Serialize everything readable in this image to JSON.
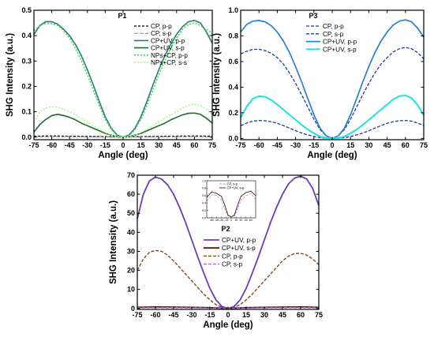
{
  "chart_data": [
    {
      "id": "p1",
      "type": "line",
      "title": "P1",
      "xlabel": "Angle (deg)",
      "ylabel": "SHG Intensity (a.u.)",
      "xlim": [
        -75,
        75
      ],
      "ylim": [
        -0.01,
        0.5
      ],
      "xticks": [
        -75,
        -60,
        -45,
        -30,
        -15,
        0,
        15,
        30,
        45,
        60,
        75
      ],
      "yticks": [
        0.0,
        0.1,
        0.2,
        0.3,
        0.4,
        0.5
      ],
      "ytick_labels": [
        "0.0",
        "0.1",
        "0.2",
        "0.3",
        "0.4",
        "0.5"
      ],
      "legend_position": "top-right",
      "series": [
        {
          "name": "CP, p-p",
          "color": "#000000",
          "dash": "3,2",
          "width": 1.2,
          "x": [
            -75,
            -60,
            -45,
            -30,
            -15,
            -5,
            0,
            5,
            15,
            30,
            45,
            60,
            75
          ],
          "y": [
            0.004,
            0.005,
            0.004,
            0.003,
            0.002,
            0.001,
            0.0,
            0.001,
            0.002,
            0.003,
            0.004,
            0.005,
            0.004
          ]
        },
        {
          "name": "CP, s-p",
          "color": "#7a7a7a",
          "dash": "5,2",
          "width": 1.0,
          "x": [
            -75,
            -60,
            -45,
            -30,
            -15,
            -5,
            0,
            5,
            15,
            30,
            45,
            60,
            75
          ],
          "y": [
            0.001,
            0.002,
            0.002,
            0.001,
            0.001,
            0.0,
            0.0,
            0.0,
            0.001,
            0.001,
            0.002,
            0.002,
            0.001
          ]
        },
        {
          "name": "CP+UV, p-p",
          "color": "#2b7a78",
          "dash": "",
          "width": 1.6,
          "x": [
            -75,
            -70,
            -65,
            -60,
            -55,
            -50,
            -45,
            -40,
            -35,
            -30,
            -25,
            -20,
            -15,
            -10,
            -5,
            0,
            5,
            10,
            15,
            20,
            25,
            30,
            35,
            40,
            45,
            50,
            55,
            60,
            65,
            70,
            75
          ],
          "y": [
            0.405,
            0.44,
            0.455,
            0.455,
            0.445,
            0.425,
            0.4,
            0.365,
            0.32,
            0.265,
            0.205,
            0.14,
            0.08,
            0.035,
            0.008,
            0.0,
            0.008,
            0.035,
            0.08,
            0.14,
            0.205,
            0.265,
            0.32,
            0.365,
            0.405,
            0.435,
            0.455,
            0.46,
            0.45,
            0.415,
            0.37
          ]
        },
        {
          "name": "CP+UV, s-p",
          "color": "#1e6b2e",
          "dash": "",
          "width": 1.6,
          "x": [
            -75,
            -70,
            -65,
            -60,
            -55,
            -50,
            -45,
            -40,
            -35,
            -30,
            -25,
            -20,
            -15,
            -10,
            -5,
            0,
            5,
            10,
            15,
            20,
            25,
            30,
            35,
            40,
            45,
            50,
            55,
            60,
            65,
            70,
            75
          ],
          "y": [
            0.02,
            0.05,
            0.07,
            0.085,
            0.09,
            0.085,
            0.078,
            0.068,
            0.055,
            0.045,
            0.035,
            0.025,
            0.015,
            0.008,
            0.002,
            0.0,
            0.002,
            0.008,
            0.015,
            0.025,
            0.035,
            0.045,
            0.055,
            0.068,
            0.078,
            0.088,
            0.094,
            0.095,
            0.09,
            0.075,
            0.055
          ]
        },
        {
          "name": "NPs+CP, p-p",
          "color": "#3ddc4a",
          "dash": "2,2",
          "width": 1.6,
          "x": [
            -75,
            -70,
            -65,
            -60,
            -55,
            -50,
            -45,
            -40,
            -35,
            -30,
            -25,
            -20,
            -15,
            -10,
            -5,
            0,
            5,
            10,
            15,
            20,
            25,
            30,
            35,
            40,
            45,
            50,
            55,
            60,
            65,
            70,
            75
          ],
          "y": [
            0.42,
            0.44,
            0.448,
            0.448,
            0.44,
            0.42,
            0.39,
            0.35,
            0.3,
            0.245,
            0.185,
            0.125,
            0.07,
            0.03,
            0.006,
            0.0,
            0.006,
            0.03,
            0.07,
            0.125,
            0.185,
            0.245,
            0.3,
            0.35,
            0.39,
            0.425,
            0.445,
            0.45,
            0.44,
            0.425,
            0.41
          ]
        },
        {
          "name": "NPs+CP, s-s",
          "color": "#a7f08a",
          "dash": "2,2",
          "width": 1.4,
          "x": [
            -75,
            -70,
            -65,
            -60,
            -55,
            -50,
            -45,
            -40,
            -35,
            -30,
            -25,
            -20,
            -15,
            -10,
            -5,
            0,
            5,
            10,
            15,
            20,
            25,
            30,
            35,
            40,
            45,
            50,
            55,
            60,
            65,
            70,
            75
          ],
          "y": [
            0.06,
            0.1,
            0.115,
            0.12,
            0.118,
            0.11,
            0.1,
            0.088,
            0.075,
            0.06,
            0.045,
            0.03,
            0.018,
            0.008,
            0.002,
            0.0,
            0.002,
            0.008,
            0.018,
            0.03,
            0.045,
            0.06,
            0.075,
            0.088,
            0.1,
            0.115,
            0.125,
            0.13,
            0.125,
            0.11,
            0.09
          ]
        }
      ]
    },
    {
      "id": "p3",
      "type": "line",
      "title": "P3",
      "xlabel": "Angle (deg)",
      "ylabel": "SHG Intensity (a.u.)",
      "xlim": [
        -75,
        75
      ],
      "ylim": [
        -0.01,
        1.0
      ],
      "xticks": [
        -75,
        -60,
        -45,
        -30,
        -15,
        0,
        15,
        30,
        45,
        60,
        75
      ],
      "yticks": [
        0.0,
        0.2,
        0.4,
        0.6,
        0.8,
        1.0
      ],
      "ytick_labels": [
        "0.0",
        "0.2",
        "0.4",
        "0.6",
        "0.8",
        "1.0"
      ],
      "legend_position": "top-center",
      "series": [
        {
          "name": "CP, p-p",
          "color": "#1f3a93",
          "dash": "4,2",
          "width": 1.3,
          "x": [
            -75,
            -70,
            -65,
            -60,
            -55,
            -50,
            -45,
            -40,
            -35,
            -30,
            -25,
            -20,
            -15,
            -10,
            -5,
            0,
            5,
            10,
            15,
            20,
            25,
            30,
            35,
            40,
            45,
            50,
            55,
            60,
            65,
            70,
            75
          ],
          "y": [
            0.66,
            0.68,
            0.695,
            0.695,
            0.685,
            0.665,
            0.63,
            0.58,
            0.51,
            0.43,
            0.34,
            0.245,
            0.15,
            0.07,
            0.02,
            0.0,
            0.02,
            0.07,
            0.15,
            0.245,
            0.34,
            0.43,
            0.51,
            0.58,
            0.63,
            0.675,
            0.7,
            0.71,
            0.7,
            0.67,
            0.62
          ]
        },
        {
          "name": "CP, s-p",
          "color": "#1f3a93",
          "dash": "4,2",
          "width": 1.3,
          "x": [
            -75,
            -70,
            -65,
            -60,
            -55,
            -50,
            -45,
            -40,
            -35,
            -30,
            -25,
            -20,
            -15,
            -10,
            -5,
            0,
            5,
            10,
            15,
            20,
            25,
            30,
            35,
            40,
            45,
            50,
            55,
            60,
            65,
            70,
            75
          ],
          "y": [
            0.1,
            0.12,
            0.135,
            0.14,
            0.138,
            0.13,
            0.118,
            0.1,
            0.08,
            0.06,
            0.042,
            0.027,
            0.015,
            0.006,
            0.001,
            0.0,
            0.001,
            0.006,
            0.015,
            0.027,
            0.042,
            0.06,
            0.08,
            0.1,
            0.118,
            0.13,
            0.138,
            0.14,
            0.135,
            0.12,
            0.1
          ]
        },
        {
          "name": "CP+UV, p-p",
          "color": "#2a7fd4",
          "dash": "",
          "width": 1.7,
          "x": [
            -75,
            -70,
            -65,
            -60,
            -55,
            -50,
            -45,
            -40,
            -35,
            -30,
            -25,
            -20,
            -15,
            -10,
            -5,
            0,
            5,
            10,
            15,
            20,
            25,
            30,
            35,
            40,
            45,
            50,
            55,
            60,
            65,
            70,
            75
          ],
          "y": [
            0.83,
            0.89,
            0.915,
            0.92,
            0.91,
            0.88,
            0.83,
            0.76,
            0.67,
            0.56,
            0.44,
            0.31,
            0.185,
            0.08,
            0.02,
            0.0,
            0.02,
            0.08,
            0.185,
            0.31,
            0.44,
            0.56,
            0.67,
            0.76,
            0.83,
            0.885,
            0.915,
            0.925,
            0.91,
            0.86,
            0.79
          ]
        },
        {
          "name": "CP+UV, s-p",
          "color": "#20e0e8",
          "dash": "",
          "width": 2.0,
          "x": [
            -75,
            -70,
            -65,
            -60,
            -55,
            -50,
            -45,
            -40,
            -35,
            -30,
            -25,
            -20,
            -15,
            -10,
            -5,
            0,
            5,
            10,
            15,
            20,
            25,
            30,
            35,
            40,
            45,
            50,
            55,
            60,
            65,
            70,
            75
          ],
          "y": [
            0.16,
            0.25,
            0.31,
            0.33,
            0.325,
            0.3,
            0.265,
            0.225,
            0.185,
            0.145,
            0.105,
            0.07,
            0.04,
            0.015,
            0.003,
            0.0,
            0.003,
            0.015,
            0.04,
            0.07,
            0.105,
            0.145,
            0.185,
            0.225,
            0.265,
            0.305,
            0.33,
            0.335,
            0.315,
            0.26,
            0.18
          ]
        }
      ]
    },
    {
      "id": "p2",
      "type": "line",
      "title": "P2",
      "xlabel": "Angle (deg)",
      "ylabel": "SHG Intensity (a.u.)",
      "xlim": [
        -75,
        75
      ],
      "ylim": [
        -0.5,
        70
      ],
      "xticks": [
        -75,
        -60,
        -45,
        -30,
        -15,
        0,
        15,
        30,
        45,
        60,
        75
      ],
      "yticks": [
        0,
        10,
        20,
        30,
        40,
        50,
        60,
        70
      ],
      "ytick_labels": [
        "0",
        "10",
        "20",
        "30",
        "40",
        "50",
        "60",
        "70"
      ],
      "legend_position": "center",
      "series": [
        {
          "name": "CP+UV, p-p",
          "color": "#6a3db8",
          "dash": "",
          "width": 1.8,
          "x": [
            -75,
            -70,
            -65,
            -60,
            -55,
            -50,
            -45,
            -40,
            -35,
            -30,
            -25,
            -20,
            -15,
            -10,
            -5,
            0,
            5,
            10,
            15,
            20,
            25,
            30,
            35,
            40,
            45,
            50,
            55,
            60,
            65,
            70,
            75
          ],
          "y": [
            47,
            60,
            67,
            69,
            68,
            65,
            60,
            53,
            45,
            36,
            27,
            18.5,
            10.5,
            4.5,
            1.0,
            0.0,
            1.0,
            4.5,
            10.5,
            18.5,
            27,
            36,
            45,
            53,
            60,
            65.5,
            68.5,
            69.5,
            68,
            63,
            54
          ]
        },
        {
          "name": "CP+UV, s-p",
          "color": "#4a1e0e",
          "dash": "",
          "width": 1.8,
          "x": [
            -75,
            -60,
            -45,
            -30,
            -15,
            -5,
            0,
            5,
            15,
            30,
            45,
            60,
            75
          ],
          "y": [
            0.6,
            0.8,
            0.7,
            0.6,
            0.4,
            0.15,
            0.0,
            0.15,
            0.4,
            0.6,
            0.7,
            0.8,
            0.6
          ]
        },
        {
          "name": "CP, p-p",
          "color": "#8b4513",
          "dash": "4,2",
          "width": 1.4,
          "x": [
            -75,
            -70,
            -65,
            -60,
            -55,
            -50,
            -45,
            -40,
            -35,
            -30,
            -25,
            -20,
            -15,
            -10,
            -5,
            0,
            5,
            10,
            15,
            20,
            25,
            30,
            35,
            40,
            45,
            50,
            55,
            60,
            65,
            70,
            75
          ],
          "y": [
            20,
            26,
            29.5,
            30.5,
            30,
            28,
            25,
            21.5,
            18,
            14.5,
            11,
            7.5,
            4.5,
            2.0,
            0.5,
            0.0,
            0.5,
            2.0,
            4.5,
            7.5,
            11,
            14.5,
            18,
            21.5,
            25,
            27.5,
            28.8,
            29,
            28,
            26,
            23
          ]
        },
        {
          "name": "CP, s-p",
          "color": "#a070e0",
          "dash": "4,2",
          "width": 1.3,
          "x": [
            -75,
            -60,
            -45,
            -30,
            -15,
            -5,
            0,
            5,
            15,
            30,
            45,
            60,
            75
          ],
          "y": [
            0.3,
            0.4,
            0.35,
            0.3,
            0.2,
            0.08,
            0.0,
            0.08,
            0.2,
            0.3,
            0.35,
            0.4,
            0.3
          ]
        }
      ],
      "inset": {
        "xlim": [
          -75,
          75
        ],
        "ylim": [
          0,
          1.0
        ],
        "xticks": [
          -60,
          -45,
          -30,
          -15,
          0,
          15,
          30,
          45,
          60
        ],
        "yticks": [
          0.0,
          0.2,
          0.4,
          0.6,
          0.8,
          1.0
        ],
        "ytick_labels": [
          "0.0",
          "0.2",
          "0.4",
          "0.6",
          "0.8",
          "1.0"
        ],
        "series": [
          {
            "name": "CP, s-p",
            "color": "#a070e0",
            "dash": "3,1.5",
            "width": 0.7,
            "x": [
              -75,
              -60,
              -45,
              -30,
              -20,
              -10,
              0,
              10,
              20,
              30,
              45,
              60,
              75
            ],
            "y": [
              0.45,
              0.62,
              0.6,
              0.48,
              0.25,
              0.05,
              0.02,
              0.05,
              0.25,
              0.48,
              0.6,
              0.65,
              0.5
            ]
          },
          {
            "name": "CP+UV, s-p",
            "color": "#4a1e0e",
            "dash": "",
            "width": 0.9,
            "x": [
              -75,
              -60,
              -45,
              -30,
              -20,
              -10,
              0,
              10,
              20,
              30,
              45,
              60,
              75
            ],
            "y": [
              0.55,
              0.7,
              0.66,
              0.58,
              0.35,
              0.08,
              0.02,
              0.08,
              0.35,
              0.58,
              0.68,
              0.72,
              0.6
            ]
          }
        ]
      }
    }
  ]
}
